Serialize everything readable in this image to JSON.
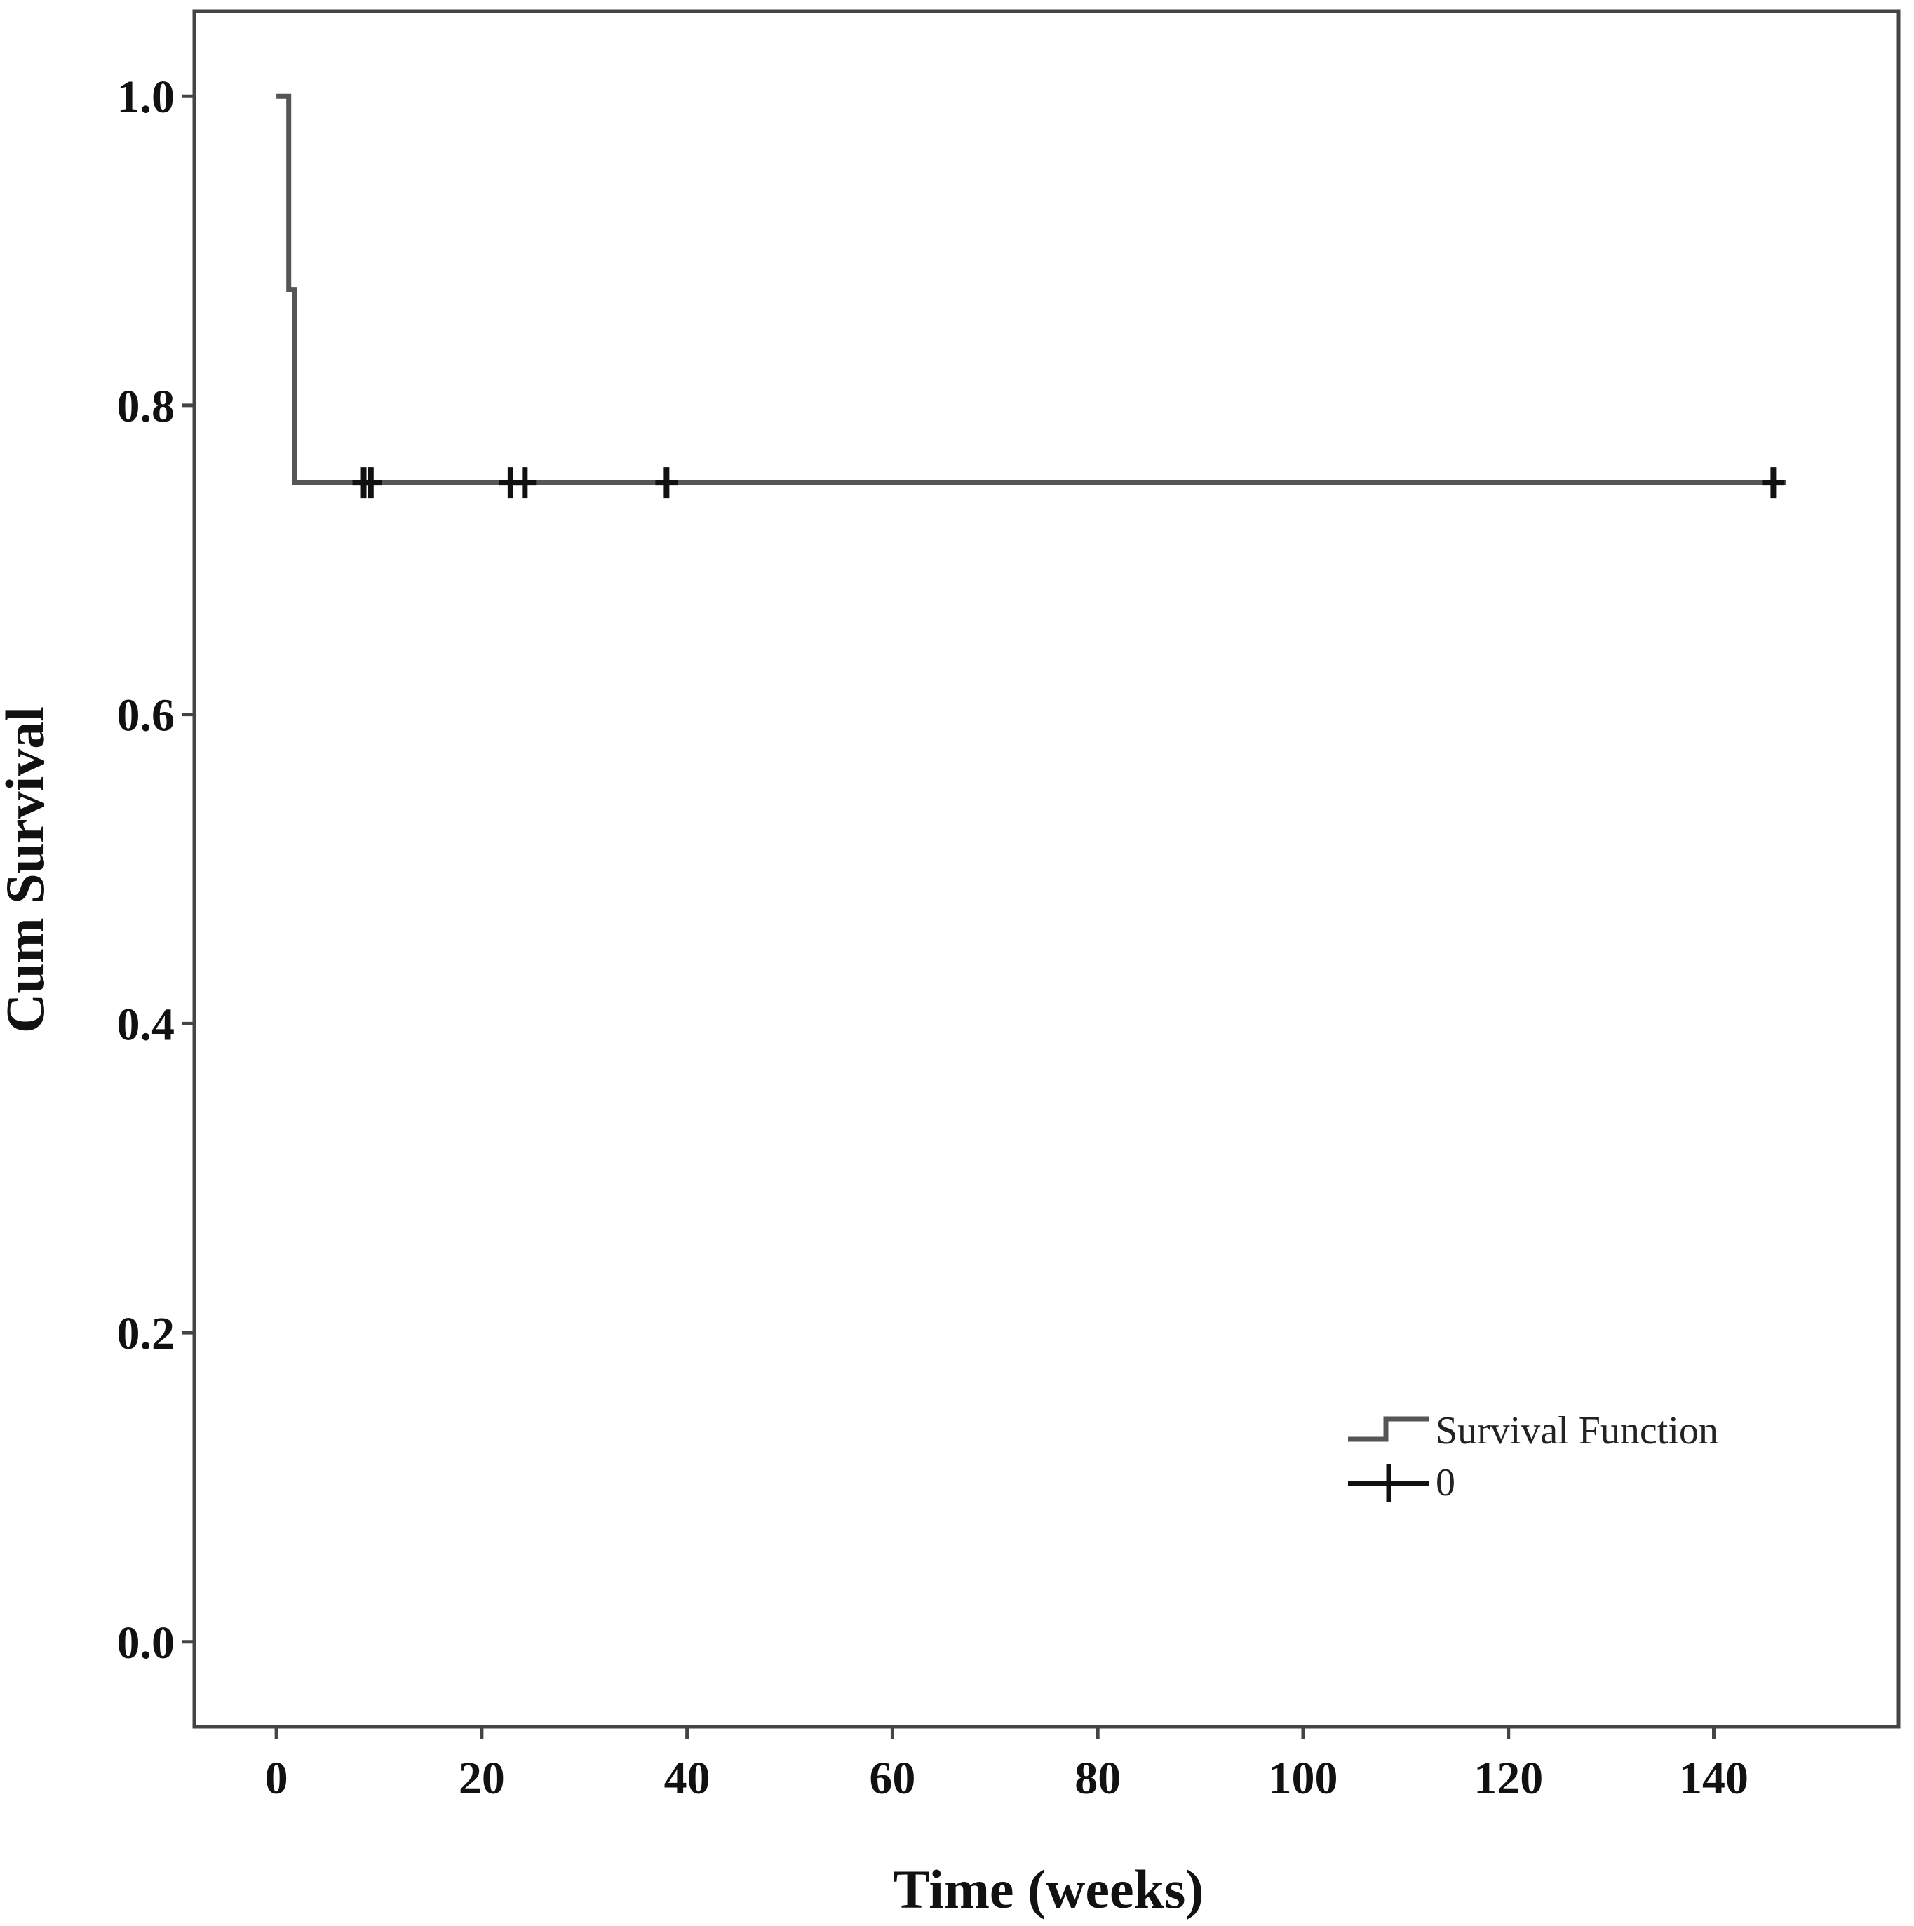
{
  "chart_data": {
    "type": "line",
    "subtype": "kaplan-meier",
    "title": "",
    "xlabel": "Time (weeks)",
    "ylabel": "Cum Survival",
    "xlim": [
      -8,
      158
    ],
    "ylim": [
      -0.055,
      1.055
    ],
    "x_ticks": [
      0,
      20,
      40,
      60,
      80,
      100,
      120,
      140
    ],
    "y_ticks": [
      0.0,
      0.2,
      0.4,
      0.6,
      0.8,
      1.0
    ],
    "x_tick_labels": [
      "0",
      "20",
      "40",
      "60",
      "80",
      "100",
      "120",
      "140"
    ],
    "y_tick_labels": [
      "0.0",
      "0.2",
      "0.4",
      "0.6",
      "0.8",
      "1.0"
    ],
    "grid": false,
    "legend_position": "bottom-right",
    "series": [
      {
        "name": "Survival Function",
        "style": "step",
        "color": "#555555",
        "x": [
          0,
          1.2,
          1.2,
          1.8,
          1.8,
          147
        ],
        "y": [
          1.0,
          1.0,
          0.875,
          0.875,
          0.75,
          0.75
        ]
      },
      {
        "name": "0",
        "style": "censored-markers",
        "color": "#111111",
        "x": [
          8.5,
          9.2,
          22.8,
          24.2,
          38,
          145.8
        ],
        "y": [
          0.75,
          0.75,
          0.75,
          0.75,
          0.75,
          0.75
        ]
      }
    ],
    "legend": [
      {
        "label": "Survival Function",
        "symbol": "step-line"
      },
      {
        "label": "0",
        "symbol": "plus-marker"
      }
    ]
  }
}
